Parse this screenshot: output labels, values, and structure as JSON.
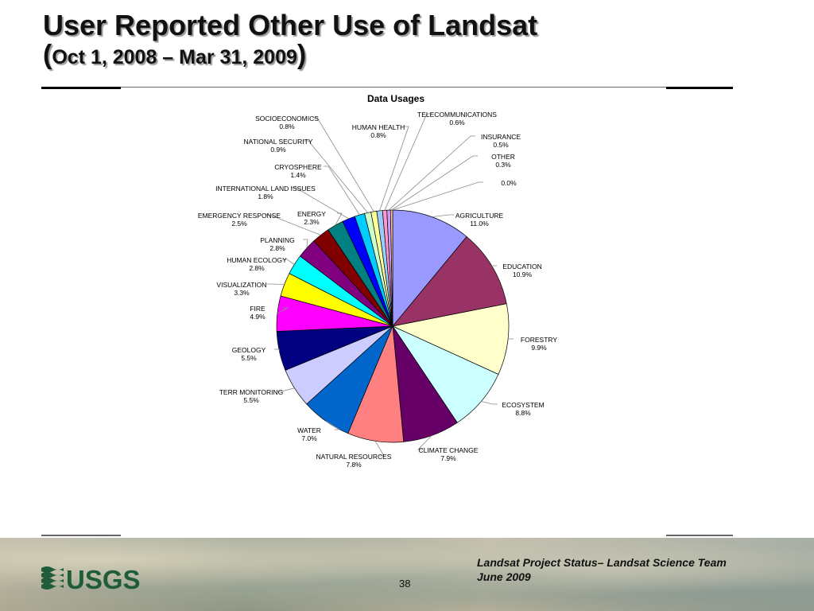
{
  "slide": {
    "title": "User Reported Other Use of Landsat",
    "subtitle_open": "(",
    "subtitle": "Oct 1, 2008 – Mar 31, 2009",
    "subtitle_close": ")",
    "footer_line1": "Landsat Project Status– Landsat Science Team",
    "footer_line2": "June 2009",
    "page_number": "38",
    "logo_text": "USGS"
  },
  "chart_data": {
    "type": "pie",
    "title": "Data Usages",
    "legend": "none",
    "slices": [
      {
        "label": "AGRICULTURE",
        "value": 11.0,
        "value_label": "11.0%",
        "color": "#9999ff"
      },
      {
        "label": "EDUCATION",
        "value": 10.9,
        "value_label": "10.9%",
        "color": "#993366"
      },
      {
        "label": "FORESTRY",
        "value": 9.9,
        "value_label": "9.9%",
        "color": "#ffffcc"
      },
      {
        "label": "ECOSYSTEM",
        "value": 8.8,
        "value_label": "8.8%",
        "color": "#ccffff"
      },
      {
        "label": "CLIMATE CHANGE",
        "value": 7.9,
        "value_label": "7.9%",
        "color": "#660066"
      },
      {
        "label": "NATURAL RESOURCES",
        "value": 7.8,
        "value_label": "7.8%",
        "color": "#ff8080"
      },
      {
        "label": "WATER",
        "value": 7.0,
        "value_label": "7.0%",
        "color": "#0066cc"
      },
      {
        "label": "TERR MONITORING",
        "value": 5.5,
        "value_label": "5.5%",
        "color": "#ccccff"
      },
      {
        "label": "GEOLOGY",
        "value": 5.5,
        "value_label": "5.5%",
        "color": "#000080"
      },
      {
        "label": "FIRE",
        "value": 4.9,
        "value_label": "4.9%",
        "color": "#ff00ff"
      },
      {
        "label": "VISUALIZATION",
        "value": 3.3,
        "value_label": "3.3%",
        "color": "#ffff00"
      },
      {
        "label": "HUMAN ECOLOGY",
        "value": 2.8,
        "value_label": "2.8%",
        "color": "#00ffff"
      },
      {
        "label": "PLANNING",
        "value": 2.8,
        "value_label": "2.8%",
        "color": "#800080"
      },
      {
        "label": "EMERGENCY RESPONSE",
        "value": 2.5,
        "value_label": "2.5%",
        "color": "#800000"
      },
      {
        "label": "ENERGY",
        "value": 2.3,
        "value_label": "2.3%",
        "color": "#008080"
      },
      {
        "label": "INTERNATIONAL LAND ISSUES",
        "value": 1.8,
        "value_label": "1.8%",
        "color": "#0000ff"
      },
      {
        "label": "CRYOSPHERE",
        "value": 1.4,
        "value_label": "1.4%",
        "color": "#00ccff"
      },
      {
        "label": "NATIONAL SECURITY",
        "value": 0.9,
        "value_label": "0.9%",
        "color": "#ccffcc"
      },
      {
        "label": "SOCIOECONOMICS",
        "value": 0.8,
        "value_label": "0.8%",
        "color": "#ffff99"
      },
      {
        "label": "HUMAN HEALTH",
        "value": 0.8,
        "value_label": "0.8%",
        "color": "#99ccff"
      },
      {
        "label": "TELECOMMUNICATIONS",
        "value": 0.6,
        "value_label": "0.6%",
        "color": "#ff99cc"
      },
      {
        "label": "INSURANCE",
        "value": 0.5,
        "value_label": "0.5%",
        "color": "#cc99ff"
      },
      {
        "label": "OTHER",
        "value": 0.3,
        "value_label": "0.3%",
        "color": "#ffcc99"
      },
      {
        "label": "",
        "value": 0.0,
        "value_label": "0.0%",
        "color": "#3366ff"
      }
    ]
  }
}
